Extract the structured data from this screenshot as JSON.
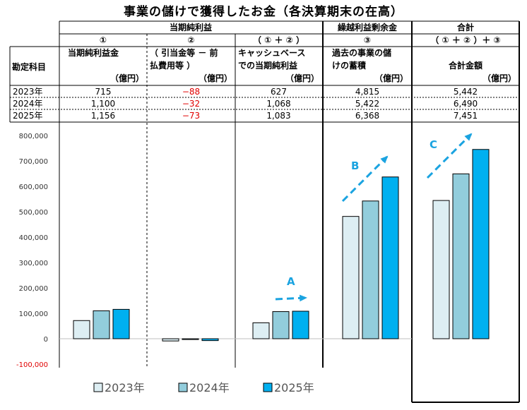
{
  "title": "事業の儲けで獲得したお金（各決算期末の在高）",
  "table": {
    "row_header": "勘定科目",
    "group_headers": [
      "当期純利益",
      "繰越利益剰余金",
      "合計"
    ],
    "col_nums": [
      "①",
      "②",
      "（ ① ＋ ② ）",
      "③",
      "（ ① ＋ ② ）＋ ③"
    ],
    "col_labels": [
      [
        "当期純利益金"
      ],
      [
        "（ 引当金等 － 前",
        "払費用等 ）"
      ],
      [
        "キャッシュベース",
        "での当期純利益"
      ],
      [
        "過去の事業の儲",
        "けの蓄積"
      ],
      [
        "合計金額"
      ]
    ],
    "unit": "（億円）",
    "rows": [
      {
        "year": "2023年",
        "values": [
          "715",
          "−88",
          "627",
          "4,815",
          "5,442"
        ]
      },
      {
        "year": "2024年",
        "values": [
          "1,100",
          "−32",
          "1,068",
          "5,422",
          "6,490"
        ]
      },
      {
        "year": "2025年",
        "values": [
          "1,156",
          "−73",
          "1,083",
          "6,368",
          "7,451"
        ]
      }
    ]
  },
  "chart_data": {
    "type": "bar",
    "categories": [
      "当期純利益金",
      "（引当金等－前払費用等）",
      "キャッシュベースでの当期純利益",
      "過去の事業の儲けの蓄積",
      "合計金額"
    ],
    "series": [
      {
        "name": "2023年",
        "values": [
          71500,
          -8800,
          62700,
          481500,
          544200
        ],
        "color": "#ddeef3"
      },
      {
        "name": "2024年",
        "values": [
          110000,
          -3200,
          106800,
          542200,
          649000
        ],
        "color": "#92cddc"
      },
      {
        "name": "2025年",
        "values": [
          115600,
          -7300,
          108300,
          636800,
          745100
        ],
        "color": "#00b0f0"
      }
    ],
    "ylim": [
      -100000,
      800000
    ],
    "yticks": [
      "-100,000",
      "0",
      "100,000",
      "200,000",
      "300,000",
      "400,000",
      "500,000",
      "600,000",
      "700,000",
      "800,000"
    ],
    "annotations": [
      "A",
      "B",
      "C"
    ],
    "legend": [
      "2023年",
      "2024年",
      "2025年"
    ],
    "legend_position": "bottom",
    "grid": false
  }
}
